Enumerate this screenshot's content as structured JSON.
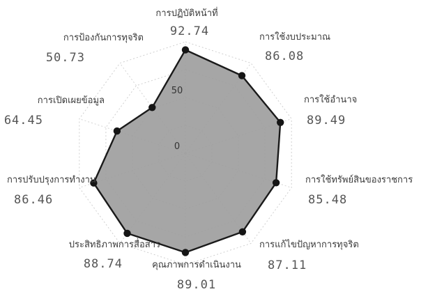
{
  "chart_data": {
    "type": "radar",
    "title": "",
    "categories": [
      "การปฏิบัติหน้าที่",
      "การใช้งบประมาณ",
      "การใช้อำนาจ",
      "การใช้ทรัพย์สินของราชการ",
      "การแก้ไขปัญหาการทุจริต",
      "คุณภาพการดำเนินงาน",
      "ประสิทธิภาพการสื่อสาร",
      "การปรับปรุงการทำงาน",
      "การเปิดเผยข้อมูล",
      "การป้องกันการทุจริต"
    ],
    "values": [
      92.74,
      86.08,
      89.49,
      85.48,
      87.11,
      89.01,
      88.74,
      86.46,
      64.45,
      50.73
    ],
    "value_labels": [
      "92.74",
      "86.08",
      "89.49",
      "85.48",
      "87.11",
      "89.01",
      "88.74",
      "86.46",
      "64.45",
      "50.73"
    ],
    "rlim": [
      0,
      100
    ],
    "ticks": [
      0,
      50
    ],
    "tick_labels": [
      "0",
      "50"
    ],
    "grid": true,
    "legend": "none",
    "colors": {
      "fill": "#9c9c9c",
      "line": "#1a1a1a",
      "marker": "#151515",
      "grid": "#cfcfcf"
    }
  }
}
